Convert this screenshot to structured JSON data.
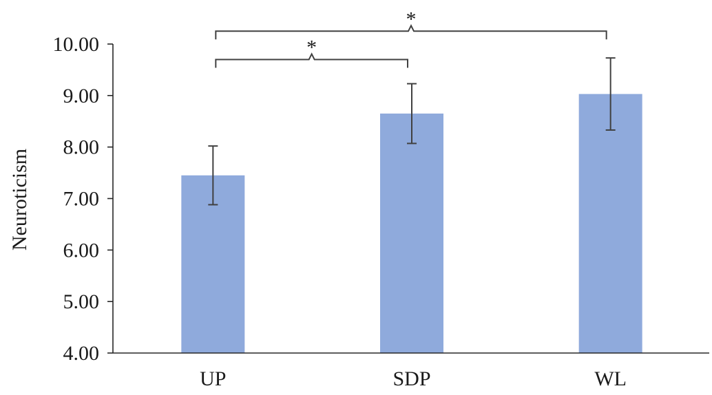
{
  "chart_data": {
    "type": "bar",
    "title": "",
    "xlabel": "",
    "ylabel": "Neuroticism",
    "ylim": [
      4.0,
      10.0
    ],
    "yticks": [
      "4.00",
      "5.00",
      "6.00",
      "7.00",
      "8.00",
      "9.00",
      "10.00"
    ],
    "categories": [
      "UP",
      "SDP",
      "WL"
    ],
    "values": [
      7.45,
      8.65,
      9.03
    ],
    "error": [
      0.57,
      0.58,
      0.7
    ],
    "bar_color": "#8faadc",
    "grid": false,
    "significance": [
      {
        "from": 0,
        "to": 1,
        "label": "*",
        "y": 9.7
      },
      {
        "from": 0,
        "to": 2,
        "label": "*",
        "y": 10.25
      }
    ]
  }
}
